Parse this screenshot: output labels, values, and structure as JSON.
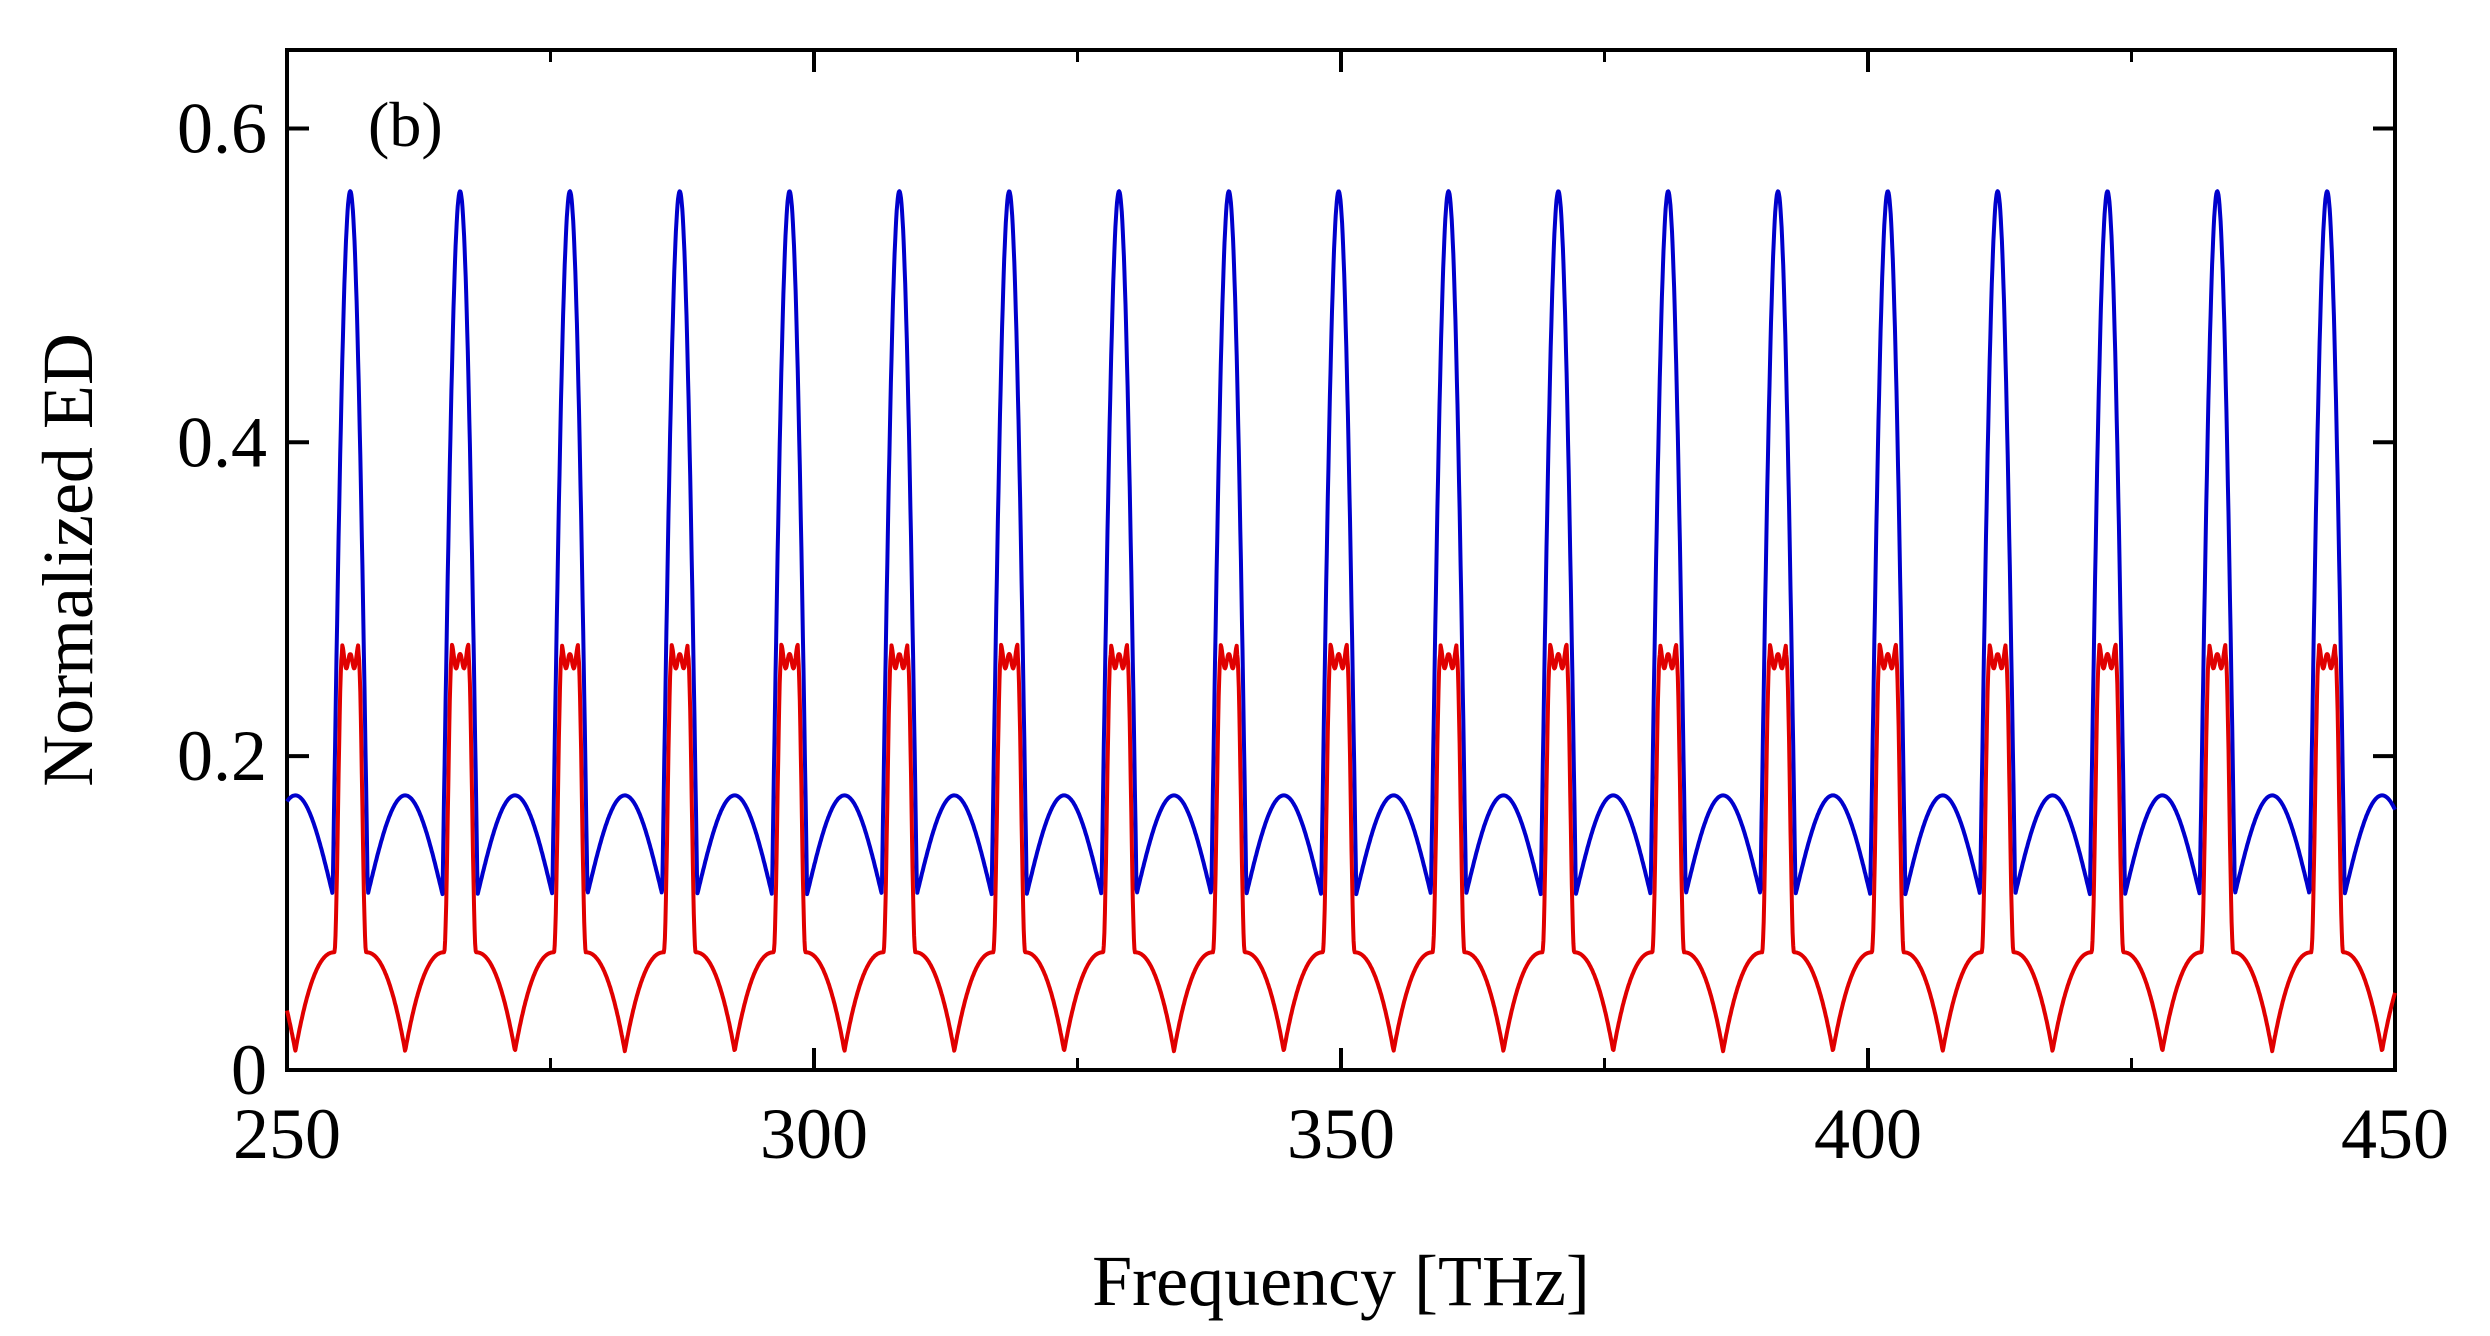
{
  "chart_data": {
    "type": "line",
    "title": "",
    "panel_label": "(b)",
    "xlabel": "Frequency [THz]",
    "ylabel": "Normalized ED",
    "xlim": [
      250,
      450
    ],
    "ylim": [
      0,
      0.65
    ],
    "xticks": [
      250,
      300,
      350,
      400,
      450
    ],
    "xtick_labels": [
      "250",
      "300",
      "350",
      "400",
      "450"
    ],
    "yticks": [
      0,
      0.2,
      0.4,
      0.6
    ],
    "ytick_labels": [
      "0",
      "0.2",
      "0.4",
      "0.6"
    ],
    "minor_xticks": [
      275,
      325,
      375,
      425
    ],
    "grid": false,
    "period_thz": 10.42,
    "first_peak_thz": 256.0,
    "series": [
      {
        "name": "blue",
        "color": "#0000cc",
        "peak_value": 0.56,
        "secondary_peak_value": 0.175,
        "trough_value": 0.112,
        "peak_frequencies": [
          256.0,
          266.4,
          276.8,
          287.3,
          297.7,
          308.1,
          318.5,
          328.9,
          339.4,
          349.8,
          360.2,
          370.6,
          381.0,
          391.5,
          401.9,
          412.3,
          422.7,
          433.1,
          443.6
        ]
      },
      {
        "name": "red",
        "color": "#e00000",
        "plateau_value": 0.265,
        "trough_value": 0.012,
        "shoulder_value": 0.075,
        "peak_frequencies": [
          256.0,
          266.4,
          276.8,
          287.3,
          297.7,
          308.1,
          318.5,
          328.9,
          339.4,
          349.8,
          360.2,
          370.6,
          381.0,
          391.5,
          401.9,
          412.3,
          422.7,
          433.1,
          443.6
        ]
      }
    ]
  }
}
